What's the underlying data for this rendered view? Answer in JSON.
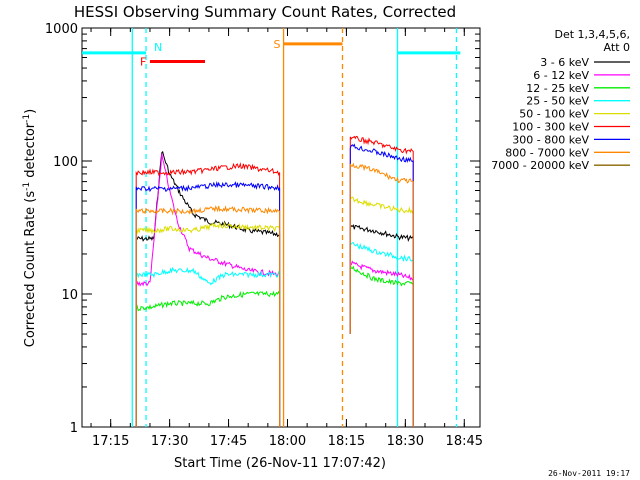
{
  "chart_data": {
    "type": "line",
    "title": "HESSI Observing Summary Count Rates, Corrected",
    "xlabel": "Start Time (26-Nov-11 17:07:42)",
    "ylabel_main": "Corrected Count Rate (s",
    "ylabel_sup1": "-1",
    "ylabel_mid": " detector",
    "ylabel_sup2": "-1",
    "ylabel_end": ")",
    "footer": "26-Nov-2011 19:17",
    "y_scale": "log",
    "ylim": [
      1,
      1000
    ],
    "xlim": [
      "17:07:42",
      "18:49:00"
    ],
    "x_ticks": [
      "17:15",
      "17:30",
      "17:45",
      "18:00",
      "18:15",
      "18:30",
      "18:45"
    ],
    "y_ticks": [
      "1",
      "10",
      "100",
      "1000"
    ],
    "legend": {
      "header_line1": "Det 1,3,4,5,6,",
      "header_line2": "Att 0",
      "position": "right"
    },
    "series": [
      {
        "name": "3 - 6 keV",
        "color": "#000000",
        "segments": [
          [
            [
              "17:21:30",
              26
            ],
            [
              "17:26",
              26
            ],
            [
              "17:28",
              120
            ],
            [
              "17:30",
              80
            ],
            [
              "17:33",
              55
            ],
            [
              "17:36",
              40
            ],
            [
              "17:40",
              35
            ],
            [
              "17:45",
              33
            ],
            [
              "17:50",
              30
            ],
            [
              "17:58",
              28
            ]
          ],
          [
            [
              "18:16",
              32
            ],
            [
              "18:22",
              30
            ],
            [
              "18:28",
              27
            ],
            [
              "18:32",
              26
            ]
          ]
        ]
      },
      {
        "name": "6 - 12 keV",
        "color": "#ff00ff",
        "segments": [
          [
            [
              "17:21:30",
              12
            ],
            [
              "17:25",
              12
            ],
            [
              "17:28",
              110
            ],
            [
              "17:30",
              60
            ],
            [
              "17:32",
              35
            ],
            [
              "17:35",
              22
            ],
            [
              "17:39",
              19
            ],
            [
              "17:44",
              17
            ],
            [
              "17:50",
              15
            ],
            [
              "17:58",
              14
            ]
          ],
          [
            [
              "18:16",
              17
            ],
            [
              "18:22",
              15
            ],
            [
              "18:28",
              14
            ],
            [
              "18:32",
              13
            ]
          ]
        ]
      },
      {
        "name": "12 - 25 keV",
        "color": "#00ee00",
        "segments": [
          [
            [
              "17:21:30",
              7.8
            ],
            [
              "17:26",
              8
            ],
            [
              "17:30",
              8.5
            ],
            [
              "17:36",
              8.5
            ],
            [
              "17:40",
              8.5
            ],
            [
              "17:44",
              9.5
            ],
            [
              "17:50",
              10
            ],
            [
              "17:58",
              10
            ]
          ],
          [
            [
              "18:16",
              16
            ],
            [
              "18:22",
              13
            ],
            [
              "18:28",
              12
            ],
            [
              "18:32",
              12
            ]
          ]
        ]
      },
      {
        "name": "25 - 50 keV",
        "color": "#00ffff",
        "segments": [
          [
            [
              "17:21:30",
              14
            ],
            [
              "17:26",
              14
            ],
            [
              "17:30",
              15
            ],
            [
              "17:36",
              15
            ],
            [
              "17:40",
              12
            ],
            [
              "17:44",
              14
            ],
            [
              "17:50",
              14
            ],
            [
              "17:58",
              14
            ]
          ],
          [
            [
              "18:16",
              24
            ],
            [
              "18:22",
              21
            ],
            [
              "18:28",
              19
            ],
            [
              "18:32",
              18
            ]
          ]
        ]
      },
      {
        "name": "50 - 100 keV",
        "color": "#dddd00",
        "segments": [
          [
            [
              "17:21:30",
              30
            ],
            [
              "17:26",
              30
            ],
            [
              "17:30",
              31
            ],
            [
              "17:36",
              30
            ],
            [
              "17:42",
              33
            ],
            [
              "17:48",
              32
            ],
            [
              "17:58",
              31
            ]
          ],
          [
            [
              "18:16",
              52
            ],
            [
              "18:22",
              47
            ],
            [
              "18:28",
              43
            ],
            [
              "18:32",
              42
            ]
          ]
        ]
      },
      {
        "name": "100 - 300 keV",
        "color": "#ff0000",
        "segments": [
          [
            [
              "17:21:30",
              82
            ],
            [
              "17:26",
              82
            ],
            [
              "17:30",
              82
            ],
            [
              "17:36",
              83
            ],
            [
              "17:42",
              88
            ],
            [
              "17:48",
              92
            ],
            [
              "17:58",
              82
            ]
          ],
          [
            [
              "18:16",
              150
            ],
            [
              "18:22",
              138
            ],
            [
              "18:28",
              122
            ],
            [
              "18:32",
              118
            ]
          ]
        ]
      },
      {
        "name": "300 - 800 keV",
        "color": "#0000ff",
        "segments": [
          [
            [
              "17:21:30",
              62
            ],
            [
              "17:26",
              62
            ],
            [
              "17:30",
              62
            ],
            [
              "17:36",
              63
            ],
            [
              "17:42",
              66
            ],
            [
              "17:48",
              66
            ],
            [
              "17:58",
              63
            ]
          ],
          [
            [
              "18:16",
              130
            ],
            [
              "18:22",
              118
            ],
            [
              "18:28",
              105
            ],
            [
              "18:32",
              100
            ]
          ]
        ]
      },
      {
        "name": "800 - 7000 keV",
        "color": "#ff8800",
        "segments": [
          [
            [
              "17:21:30",
              42
            ],
            [
              "17:26",
              42
            ],
            [
              "17:30",
              42
            ],
            [
              "17:36",
              42
            ],
            [
              "17:42",
              44
            ],
            [
              "17:48",
              43
            ],
            [
              "17:58",
              42
            ]
          ],
          [
            [
              "18:16",
              95
            ],
            [
              "18:22",
              85
            ],
            [
              "18:28",
              72
            ],
            [
              "18:32",
              70
            ]
          ]
        ]
      },
      {
        "name": "7000 - 20000 keV",
        "color": "#886600",
        "segments": []
      }
    ],
    "flags": [
      {
        "label": "",
        "color": "#00ffff",
        "y": 650,
        "x_start": "17:07:42",
        "x_end": "17:24:00"
      },
      {
        "label": "N",
        "color": "#00ffff",
        "y": 650,
        "x_start": "17:24:00",
        "x_end": "17:24:00"
      },
      {
        "label": "F",
        "color": "#ff0000",
        "y": 560,
        "x_start": "17:25:00",
        "x_end": "17:39:00"
      },
      {
        "label": "S",
        "color": "#ff8800",
        "y": 760,
        "x_start": "17:59:00",
        "x_end": "18:14:00"
      },
      {
        "label": "",
        "color": "#00ffff",
        "y": 650,
        "x_start": "18:28:00",
        "x_end": "18:44:00"
      }
    ],
    "vertical_lines": [
      {
        "x": "17:20:30",
        "color": "#00ffff",
        "style": "solid"
      },
      {
        "x": "17:24:00",
        "color": "#00ffff",
        "style": "dashed"
      },
      {
        "x": "17:59:00",
        "color": "#ff8800",
        "style": "solid"
      },
      {
        "x": "18:14:00",
        "color": "#ff8800",
        "style": "dashed"
      },
      {
        "x": "18:28:00",
        "color": "#00ffff",
        "style": "solid"
      },
      {
        "x": "18:43:00",
        "color": "#00ffff",
        "style": "dashed"
      }
    ]
  }
}
